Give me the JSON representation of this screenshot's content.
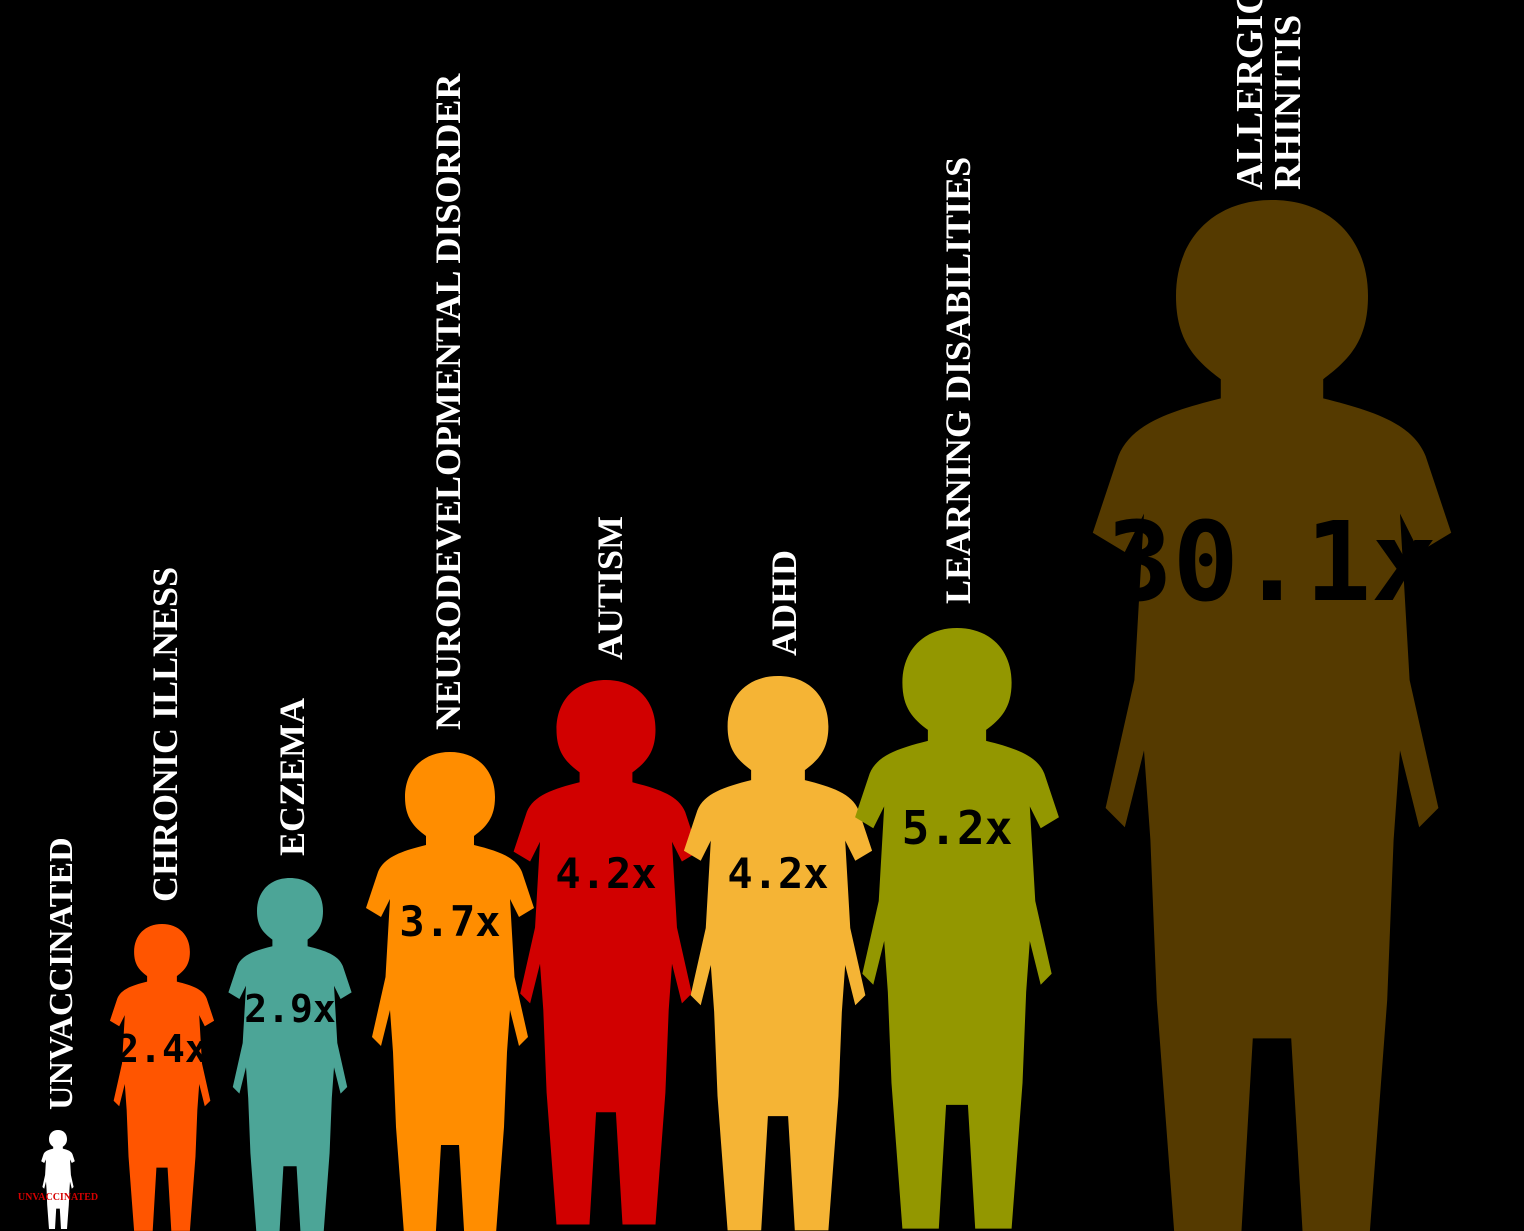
{
  "chart_data": {
    "type": "bar",
    "title": "",
    "xlabel": "",
    "ylabel": "",
    "categories": [
      "UNVACCINATED",
      "CHRONIC ILLNESS",
      "ECZEMA",
      "NEURODEVELOPMENTAL DISORDER",
      "AUTISM",
      "ADHD",
      "LEARNING DISABILITIES",
      "ALLERGIC RHINITIS"
    ],
    "values": [
      1,
      2.4,
      2.9,
      3.7,
      4.2,
      4.2,
      5.2,
      30.1
    ],
    "value_labels": [
      "",
      "2.4x",
      "2.9x",
      "3.7x",
      "4.2x",
      "4.2x",
      "5.2x",
      "30.1x"
    ],
    "colors": [
      "#ffffff",
      "#ff5500",
      "#4ca597",
      "#ff8d00",
      "#d10000",
      "#f5b435",
      "#939700",
      "#553a00"
    ],
    "figure_style": "child-silhouette",
    "badge_text": "UNVACCINATED",
    "background": "#000000"
  }
}
